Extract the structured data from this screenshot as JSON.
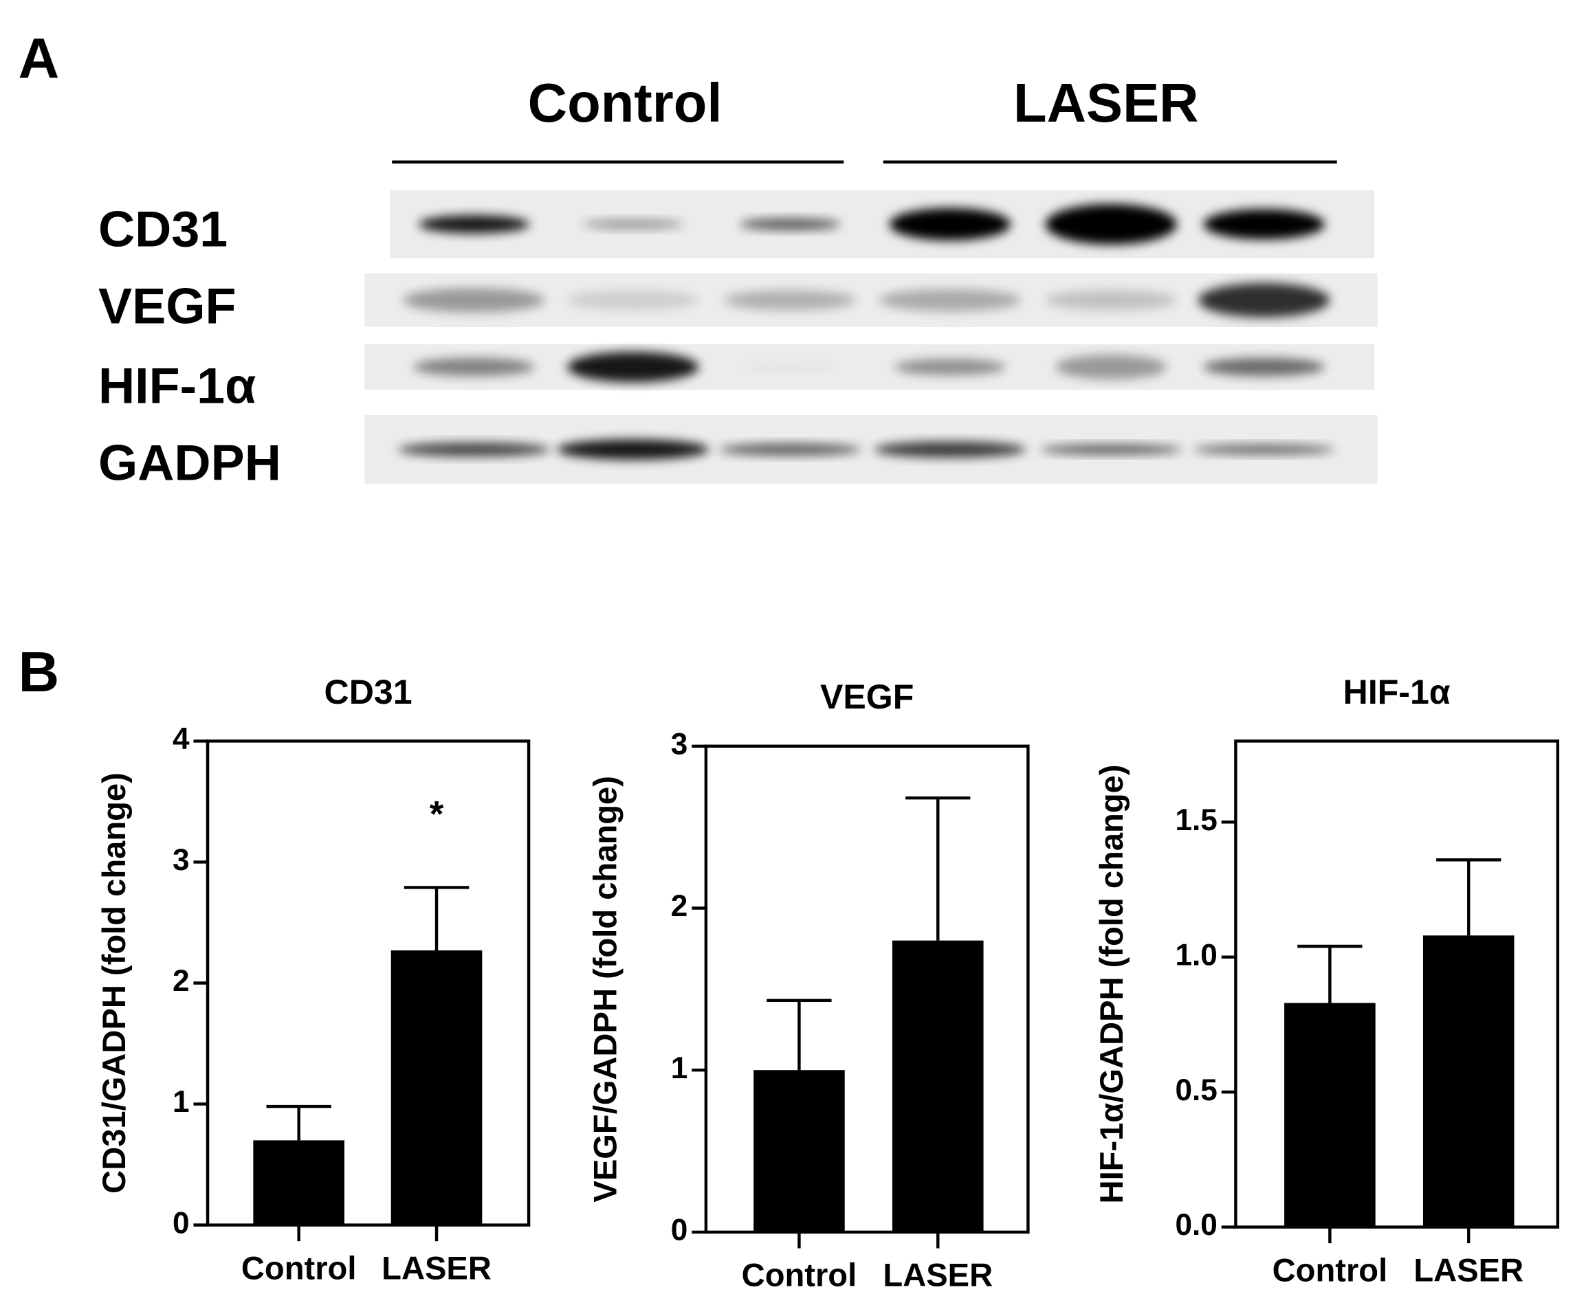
{
  "panel_labels": [
    "A",
    "B"
  ],
  "blot": {
    "groups": [
      "Control",
      "LASER"
    ],
    "rows": [
      "CD31",
      "VEGF",
      "HIF-1α",
      "GADPH"
    ]
  },
  "chart_data": [
    {
      "type": "bar",
      "title": "CD31",
      "y_label": "CD31/GADPH (fold change)",
      "categories": [
        "Control",
        "LASER"
      ],
      "values": [
        0.7,
        2.27
      ],
      "errors": [
        0.28,
        0.52
      ],
      "color": "#000000",
      "annotation": "*",
      "ylim": [
        0,
        4
      ],
      "yticks": [
        0,
        1,
        2,
        3,
        4
      ]
    },
    {
      "type": "bar",
      "title": "VEGF",
      "y_label": "VEGF/GADPH (fold change)",
      "categories": [
        "Control",
        "LASER"
      ],
      "values": [
        1.0,
        1.8
      ],
      "errors": [
        0.43,
        0.88
      ],
      "color": "#000000",
      "ylim": [
        0,
        3
      ],
      "yticks": [
        0,
        1,
        2,
        3
      ]
    },
    {
      "type": "bar",
      "title": "HIF-1α",
      "y_label": "HIF-1α/GADPH (fold change)",
      "categories": [
        "Control",
        "LASER"
      ],
      "values": [
        0.83,
        1.08
      ],
      "errors": [
        0.21,
        0.28
      ],
      "color": "#000000",
      "ylim": [
        0,
        1.8
      ],
      "yticks": [
        {
          "value": 0,
          "label": "0.0"
        },
        0.5,
        {
          "value": 1,
          "label": "1.0"
        },
        1.5
      ]
    }
  ]
}
